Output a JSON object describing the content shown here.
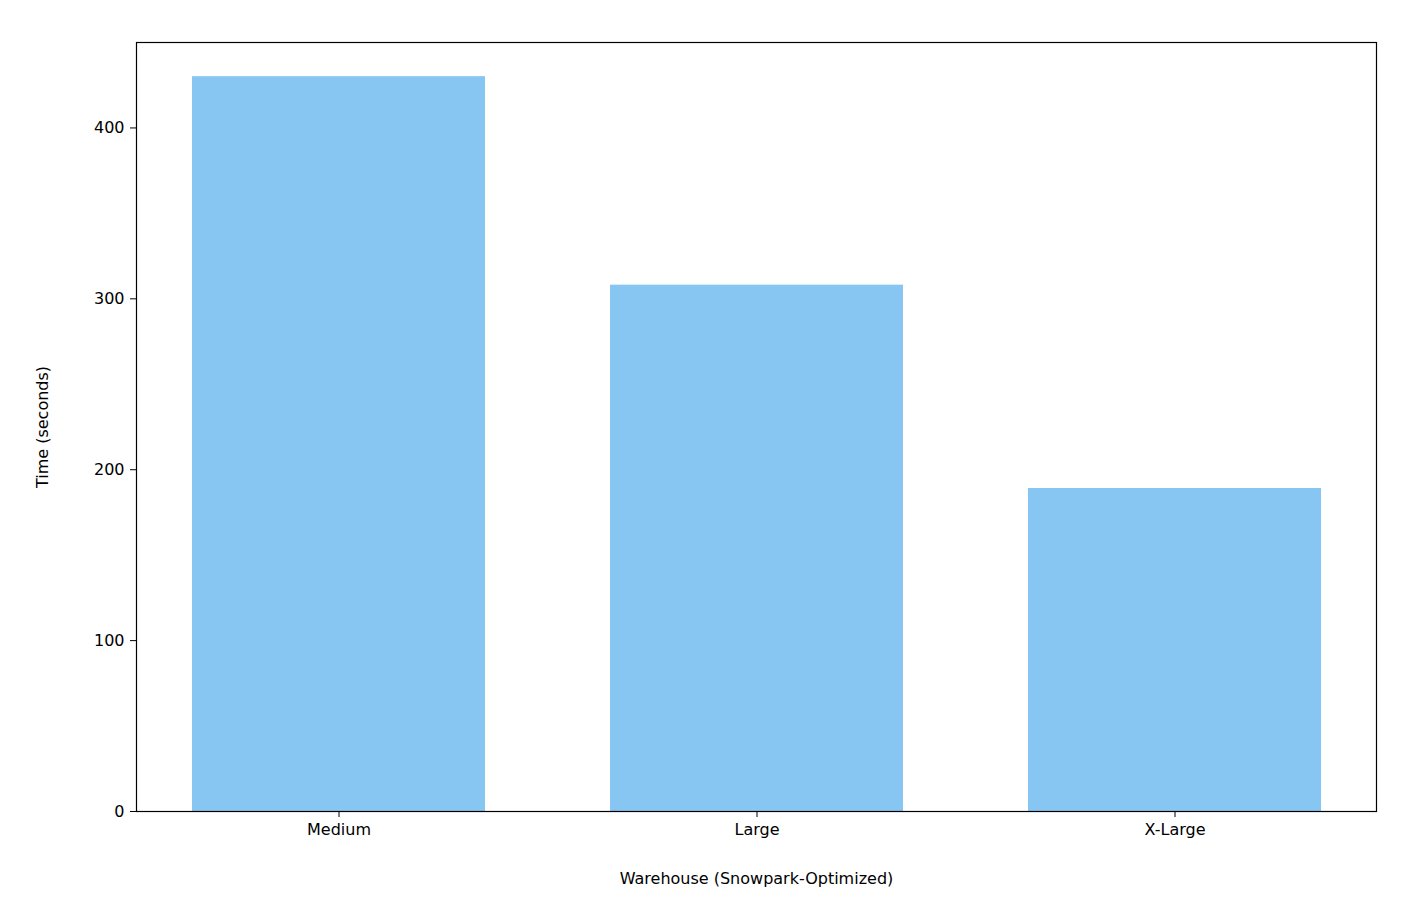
{
  "chart_data": {
    "type": "bar",
    "x_label": "Warehouse (Snowpark-Optimized)",
    "y_label": "Time (seconds)",
    "categories": [
      "Medium",
      "Large",
      "X-Large"
    ],
    "values": [
      430,
      308,
      189
    ],
    "color": "#87c5f2",
    "ylim": [
      0,
      450
    ],
    "yticks": [
      0,
      100,
      200,
      300,
      400
    ],
    "grid": false
  }
}
